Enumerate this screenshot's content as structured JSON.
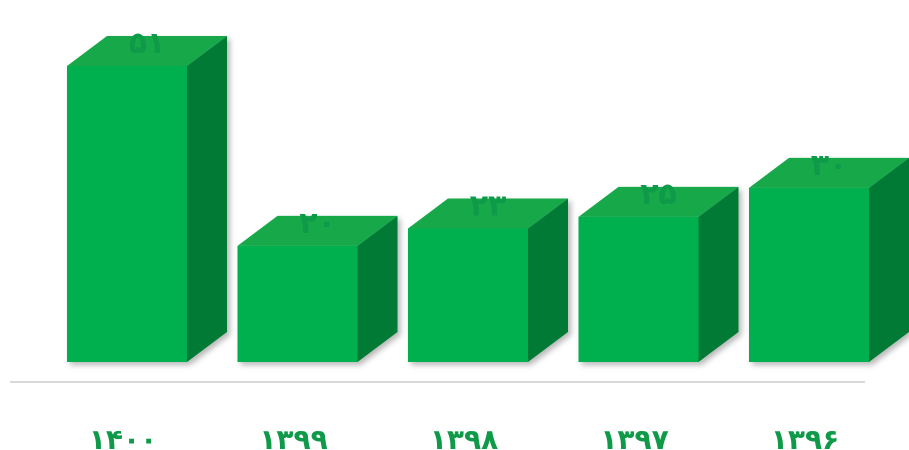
{
  "chart_data": {
    "type": "bar",
    "categories": [
      "۱۴۰۰",
      "۱۳۹۹",
      "۱۳۹۸",
      "۱۳۹۷",
      "۱۳۹۶"
    ],
    "values": [
      51,
      20,
      23,
      25,
      30
    ],
    "value_labels": [
      "۵۱",
      "۲۰",
      "۲۳",
      "۲۵",
      "۳۰"
    ],
    "title": "",
    "xlabel": "",
    "ylabel": "",
    "ylim": [
      0,
      51
    ],
    "grid": false,
    "bar_style": "3d",
    "colors": {
      "front": "#00b050",
      "top": "#14a84a",
      "side": "#067a35",
      "label": "#0e9a48",
      "axis": "#d9d9d9"
    }
  }
}
